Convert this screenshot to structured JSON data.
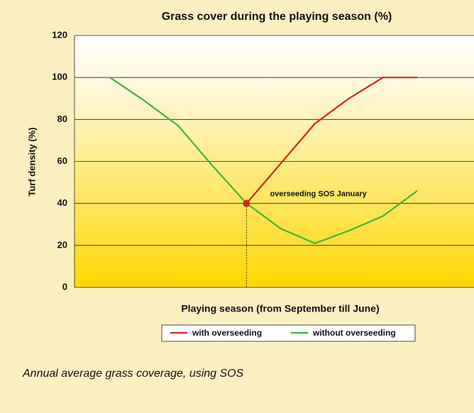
{
  "chart_data": {
    "type": "line",
    "title": "Grass cover during the playing season (%)",
    "x_label": "Playing season (from September till June)",
    "y_label": "Turf density (%)",
    "categories": [
      null,
      null,
      null,
      null,
      null,
      null,
      null,
      null,
      null,
      null
    ],
    "series": [
      {
        "name": "with overseeding",
        "color": "#e02020",
        "values": [
          null,
          null,
          null,
          null,
          40,
          59,
          78,
          90,
          100,
          100
        ]
      },
      {
        "name": "without overseeding",
        "color": "#3cb43c",
        "values": [
          100,
          89,
          77,
          58,
          40,
          28,
          21,
          27,
          34,
          46
        ]
      }
    ],
    "ylim": [
      0,
      120
    ],
    "yticks": [
      0,
      20,
      40,
      60,
      80,
      100,
      120
    ],
    "grid": true,
    "annotation": {
      "text": "overseeding SOS January",
      "index": 4,
      "value": 40,
      "color": "#e02020"
    },
    "caption": "Annual average grass coverage, using SOS",
    "legend": "bottom"
  }
}
